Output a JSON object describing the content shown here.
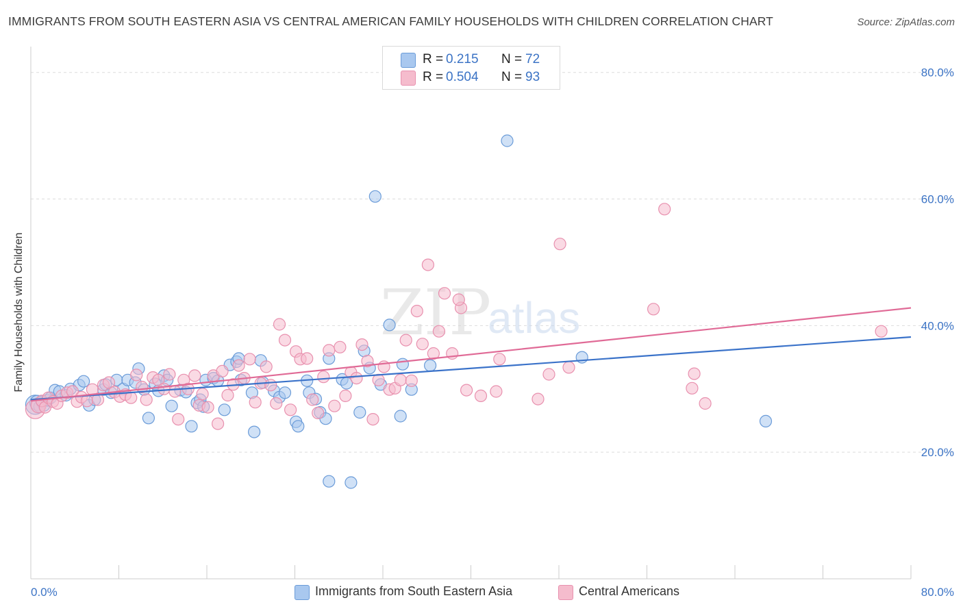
{
  "title": "IMMIGRANTS FROM SOUTH EASTERN ASIA VS CENTRAL AMERICAN FAMILY HOUSEHOLDS WITH CHILDREN CORRELATION CHART",
  "source": "Source: ZipAtlas.com",
  "watermark": {
    "zip": "ZIP",
    "atlas": "atlas"
  },
  "legend": {
    "rows": [
      {
        "r_label": "R =",
        "r_value": "0.215",
        "n_label": "N =",
        "n_value": "72"
      },
      {
        "r_label": "R =",
        "r_value": "0.504",
        "n_label": "N =",
        "n_value": "93"
      }
    ]
  },
  "colors": {
    "blue_fill": "#a9c8ef",
    "blue_stroke": "#6a9bd8",
    "blue_line": "#3a72c9",
    "pink_fill": "#f5bccd",
    "pink_stroke": "#e890ae",
    "pink_line": "#e06a96",
    "tick_text": "#3b73c5",
    "grid": "#dcdcdc"
  },
  "chart_data": {
    "type": "scatter",
    "title": "IMMIGRANTS FROM SOUTH EASTERN ASIA VS CENTRAL AMERICAN FAMILY HOUSEHOLDS WITH CHILDREN CORRELATION CHART",
    "xlabel": "",
    "ylabel": "Family Households with Children",
    "xlim": [
      0,
      80
    ],
    "ylim": [
      0,
      83
    ],
    "x_ticks": [
      "0.0%",
      "80.0%"
    ],
    "y_ticks": [
      {
        "value": 20,
        "label": "20.0%"
      },
      {
        "value": 40,
        "label": "40.0%"
      },
      {
        "value": 60,
        "label": "60.0%"
      },
      {
        "value": 80,
        "label": "80.0%"
      }
    ],
    "grid": "horizontal dashed",
    "legend_position": "top-center",
    "series": [
      {
        "name": "Immigrants from South Eastern Asia",
        "color": "blue",
        "r": 0.215,
        "n": 72,
        "trend": {
          "x": [
            0,
            80
          ],
          "y": [
            28.3,
            38.2
          ]
        },
        "points": [
          [
            0.4,
            27.5
          ],
          [
            0.6,
            27.8
          ],
          [
            0.8,
            27.2
          ],
          [
            1.0,
            28.0
          ],
          [
            1.2,
            27.4
          ],
          [
            1.5,
            28.2
          ],
          [
            1.8,
            28.6
          ],
          [
            2.2,
            29.8
          ],
          [
            2.6,
            29.6
          ],
          [
            3.2,
            29.0
          ],
          [
            3.6,
            30.0
          ],
          [
            4.4,
            30.6
          ],
          [
            4.8,
            31.2
          ],
          [
            5.3,
            27.4
          ],
          [
            5.8,
            28.3
          ],
          [
            6.6,
            29.9
          ],
          [
            6.8,
            30.7
          ],
          [
            7.3,
            29.4
          ],
          [
            7.8,
            31.4
          ],
          [
            8.4,
            30.0
          ],
          [
            8.8,
            31.4
          ],
          [
            9.5,
            31.0
          ],
          [
            9.8,
            33.2
          ],
          [
            10.3,
            29.9
          ],
          [
            10.7,
            25.4
          ],
          [
            11.3,
            30.8
          ],
          [
            11.6,
            29.7
          ],
          [
            12.1,
            32.1
          ],
          [
            12.4,
            31.4
          ],
          [
            12.8,
            27.3
          ],
          [
            13.6,
            29.8
          ],
          [
            14.1,
            29.5
          ],
          [
            14.6,
            24.1
          ],
          [
            15.1,
            27.8
          ],
          [
            15.4,
            28.3
          ],
          [
            15.7,
            27.2
          ],
          [
            15.9,
            31.4
          ],
          [
            16.6,
            31.7
          ],
          [
            17.0,
            31.3
          ],
          [
            17.6,
            26.7
          ],
          [
            18.1,
            33.8
          ],
          [
            18.7,
            34.3
          ],
          [
            18.9,
            34.8
          ],
          [
            19.1,
            31.4
          ],
          [
            20.1,
            29.4
          ],
          [
            20.3,
            23.2
          ],
          [
            20.9,
            34.5
          ],
          [
            21.1,
            31.0
          ],
          [
            22.1,
            29.7
          ],
          [
            22.6,
            28.7
          ],
          [
            23.1,
            29.4
          ],
          [
            24.1,
            24.8
          ],
          [
            24.3,
            24.1
          ],
          [
            25.1,
            31.3
          ],
          [
            25.3,
            29.4
          ],
          [
            25.9,
            28.4
          ],
          [
            26.3,
            26.3
          ],
          [
            26.8,
            25.3
          ],
          [
            27.1,
            34.8
          ],
          [
            28.3,
            31.5
          ],
          [
            28.7,
            30.9
          ],
          [
            29.9,
            26.3
          ],
          [
            30.3,
            36.0
          ],
          [
            30.8,
            33.3
          ],
          [
            31.3,
            60.4
          ],
          [
            31.8,
            30.7
          ],
          [
            32.6,
            40.1
          ],
          [
            33.6,
            25.7
          ],
          [
            33.8,
            33.9
          ],
          [
            34.6,
            29.9
          ],
          [
            36.3,
            33.7
          ],
          [
            43.3,
            69.2
          ],
          [
            50.1,
            35.0
          ],
          [
            27.1,
            15.4
          ],
          [
            29.1,
            15.2
          ],
          [
            66.8,
            24.9
          ]
        ]
      },
      {
        "name": "Central Americans",
        "color": "pink",
        "r": 0.504,
        "n": 93,
        "trend": {
          "x": [
            0,
            80
          ],
          "y": [
            28.1,
            42.8
          ]
        },
        "points": [
          [
            0.4,
            26.8
          ],
          [
            0.7,
            27.4
          ],
          [
            1.0,
            28.1
          ],
          [
            1.3,
            27.1
          ],
          [
            1.6,
            28.6
          ],
          [
            2.0,
            28.0
          ],
          [
            2.4,
            27.7
          ],
          [
            2.8,
            28.9
          ],
          [
            3.3,
            29.4
          ],
          [
            3.8,
            29.6
          ],
          [
            4.2,
            28.0
          ],
          [
            4.6,
            28.7
          ],
          [
            5.1,
            28.1
          ],
          [
            5.6,
            29.9
          ],
          [
            6.1,
            28.3
          ],
          [
            6.6,
            30.6
          ],
          [
            7.1,
            31.0
          ],
          [
            7.6,
            29.5
          ],
          [
            8.1,
            28.8
          ],
          [
            8.6,
            29.1
          ],
          [
            9.1,
            28.6
          ],
          [
            9.6,
            32.2
          ],
          [
            10.1,
            30.3
          ],
          [
            10.5,
            28.3
          ],
          [
            11.1,
            31.8
          ],
          [
            11.6,
            31.4
          ],
          [
            12.1,
            30.0
          ],
          [
            12.6,
            32.3
          ],
          [
            13.1,
            29.6
          ],
          [
            13.4,
            25.2
          ],
          [
            13.9,
            31.4
          ],
          [
            14.3,
            30.0
          ],
          [
            14.9,
            32.1
          ],
          [
            15.3,
            27.4
          ],
          [
            15.6,
            29.2
          ],
          [
            16.1,
            27.1
          ],
          [
            16.6,
            32.1
          ],
          [
            17.0,
            24.5
          ],
          [
            17.4,
            32.8
          ],
          [
            17.9,
            29.0
          ],
          [
            18.4,
            30.7
          ],
          [
            18.9,
            33.7
          ],
          [
            19.4,
            31.7
          ],
          [
            19.9,
            34.7
          ],
          [
            20.4,
            27.9
          ],
          [
            20.9,
            30.9
          ],
          [
            21.4,
            33.5
          ],
          [
            21.8,
            30.6
          ],
          [
            22.3,
            27.7
          ],
          [
            22.6,
            40.2
          ],
          [
            23.1,
            37.7
          ],
          [
            23.6,
            26.7
          ],
          [
            24.1,
            35.9
          ],
          [
            24.5,
            34.7
          ],
          [
            25.1,
            34.8
          ],
          [
            25.6,
            28.3
          ],
          [
            26.1,
            26.2
          ],
          [
            26.6,
            31.9
          ],
          [
            27.1,
            36.1
          ],
          [
            27.6,
            27.3
          ],
          [
            28.1,
            36.6
          ],
          [
            28.6,
            28.9
          ],
          [
            29.1,
            32.6
          ],
          [
            29.6,
            31.7
          ],
          [
            30.1,
            37.0
          ],
          [
            30.6,
            34.4
          ],
          [
            31.1,
            25.2
          ],
          [
            31.6,
            31.4
          ],
          [
            32.1,
            33.5
          ],
          [
            32.6,
            29.9
          ],
          [
            33.1,
            30.1
          ],
          [
            33.6,
            31.4
          ],
          [
            34.1,
            37.7
          ],
          [
            34.6,
            31.3
          ],
          [
            35.1,
            42.3
          ],
          [
            35.6,
            37.1
          ],
          [
            36.1,
            49.6
          ],
          [
            36.6,
            35.6
          ],
          [
            37.1,
            39.1
          ],
          [
            37.6,
            45.1
          ],
          [
            38.3,
            35.6
          ],
          [
            39.1,
            42.8
          ],
          [
            39.6,
            29.8
          ],
          [
            40.9,
            28.9
          ],
          [
            42.3,
            29.6
          ],
          [
            42.6,
            34.7
          ],
          [
            46.1,
            28.4
          ],
          [
            47.1,
            32.3
          ],
          [
            48.1,
            52.9
          ],
          [
            48.9,
            33.4
          ],
          [
            56.6,
            42.6
          ],
          [
            57.6,
            58.4
          ],
          [
            60.1,
            30.1
          ],
          [
            60.3,
            32.4
          ],
          [
            61.3,
            27.7
          ],
          [
            77.3,
            39.1
          ],
          [
            38.9,
            44.1
          ]
        ]
      }
    ]
  }
}
